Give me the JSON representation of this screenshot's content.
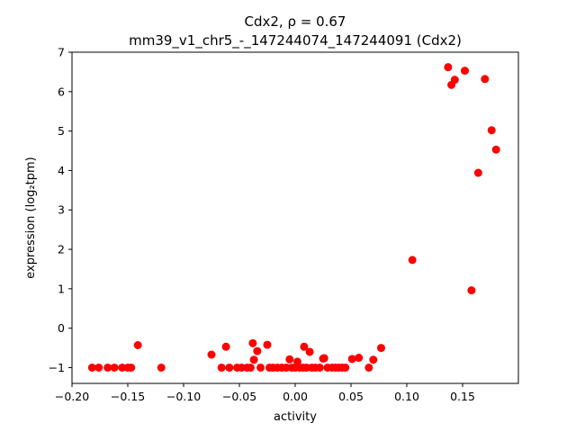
{
  "chart_data": {
    "type": "scatter",
    "title_line1": "Cdx2, ρ = 0.67",
    "title_line2": "mm39_v1_chr5_-_147244074_147244091 (Cdx2)",
    "xlabel": "activity",
    "ylabel": "expression (log₂tpm)",
    "xlim": [
      -0.2,
      0.2
    ],
    "ylim": [
      -1.4,
      7.0
    ],
    "xticks": [
      -0.2,
      -0.15,
      -0.1,
      -0.05,
      0.0,
      0.05,
      0.1,
      0.15
    ],
    "xtick_labels": [
      "−0.20",
      "−0.15",
      "−0.10",
      "−0.05",
      "0.00",
      "0.05",
      "0.10",
      "0.15"
    ],
    "yticks": [
      -1,
      0,
      1,
      2,
      3,
      4,
      5,
      6,
      7
    ],
    "ytick_labels": [
      "−1",
      "0",
      "1",
      "2",
      "3",
      "4",
      "5",
      "6",
      "7"
    ],
    "marker_color": "#ff0000",
    "grid": false,
    "points": [
      [
        -0.182,
        -1.0
      ],
      [
        -0.176,
        -1.0
      ],
      [
        -0.168,
        -1.0
      ],
      [
        -0.162,
        -1.0
      ],
      [
        -0.155,
        -1.0
      ],
      [
        -0.15,
        -1.0
      ],
      [
        -0.147,
        -1.0
      ],
      [
        -0.141,
        -0.43
      ],
      [
        -0.12,
        -1.0
      ],
      [
        -0.075,
        -0.67
      ],
      [
        -0.066,
        -1.0
      ],
      [
        -0.062,
        -0.47
      ],
      [
        -0.059,
        -1.0
      ],
      [
        -0.052,
        -1.0
      ],
      [
        -0.048,
        -1.0
      ],
      [
        -0.043,
        -1.0
      ],
      [
        -0.04,
        -1.0
      ],
      [
        -0.038,
        -0.38
      ],
      [
        -0.037,
        -0.8
      ],
      [
        -0.034,
        -0.58
      ],
      [
        -0.031,
        -1.0
      ],
      [
        -0.025,
        -0.42
      ],
      [
        -0.023,
        -1.0
      ],
      [
        -0.02,
        -1.0
      ],
      [
        -0.016,
        -1.0
      ],
      [
        -0.012,
        -1.0
      ],
      [
        -0.008,
        -1.0
      ],
      [
        -0.005,
        -0.79
      ],
      [
        -0.003,
        -1.0
      ],
      [
        0.0,
        -1.0
      ],
      [
        0.002,
        -0.85
      ],
      [
        0.004,
        -1.0
      ],
      [
        0.007,
        -1.0
      ],
      [
        0.008,
        -0.47
      ],
      [
        0.01,
        -1.0
      ],
      [
        0.013,
        -0.6
      ],
      [
        0.015,
        -1.0
      ],
      [
        0.018,
        -1.0
      ],
      [
        0.022,
        -1.0
      ],
      [
        0.025,
        -0.77
      ],
      [
        0.026,
        -0.76
      ],
      [
        0.029,
        -1.0
      ],
      [
        0.033,
        -1.0
      ],
      [
        0.036,
        -1.0
      ],
      [
        0.039,
        -1.0
      ],
      [
        0.042,
        -1.0
      ],
      [
        0.045,
        -1.0
      ],
      [
        0.051,
        -0.78
      ],
      [
        0.057,
        -0.75
      ],
      [
        0.066,
        -1.0
      ],
      [
        0.07,
        -0.8
      ],
      [
        0.077,
        -0.5
      ],
      [
        0.105,
        1.73
      ],
      [
        0.137,
        6.62
      ],
      [
        0.14,
        6.17
      ],
      [
        0.143,
        6.3
      ],
      [
        0.152,
        6.53
      ],
      [
        0.158,
        0.96
      ],
      [
        0.164,
        3.94
      ],
      [
        0.17,
        6.32
      ],
      [
        0.176,
        5.02
      ],
      [
        0.18,
        4.53
      ]
    ]
  }
}
